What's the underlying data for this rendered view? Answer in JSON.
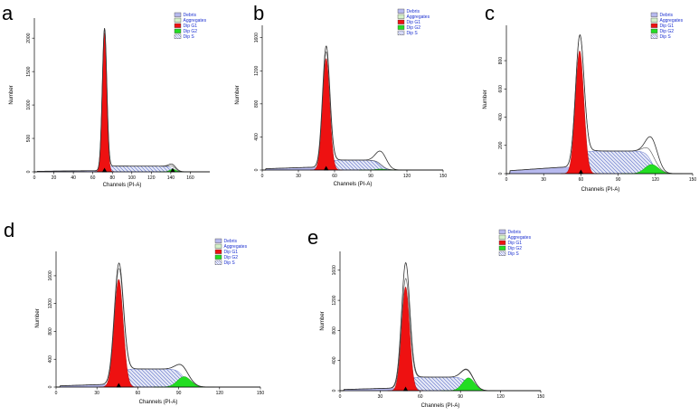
{
  "figure": {
    "legend_entries": [
      "Debris",
      "Aggregates",
      "Dip G1",
      "Dip G2",
      "Dip S"
    ]
  },
  "colors": {
    "debris": "#b7b9ee",
    "aggregates": "#d4f0c8",
    "g1": "#ee1111",
    "g2": "#22dd22",
    "s_hatch": "#5a6cc8",
    "outline": "#333333"
  },
  "chart_data": [
    {
      "panel": "a",
      "type": "histogram",
      "xlabel": "Channels (PI-A)",
      "ylabel": "Number",
      "xlim": [
        0,
        180
      ],
      "ylim": [
        0,
        2300
      ],
      "xticks": [
        0,
        20,
        40,
        60,
        80,
        100,
        120,
        140,
        160
      ],
      "xtick_labels": [
        "0",
        "20",
        "40",
        "60",
        "80",
        "100",
        "120",
        "140",
        "160"
      ],
      "yticks": [
        0,
        500,
        1000,
        1500,
        2000
      ],
      "ytick_labels": [
        "0",
        "500",
        "1000",
        "1500",
        "2000"
      ],
      "series": {
        "g1": {
          "mean": 72,
          "sd": 2.3,
          "height": 2080
        },
        "g2": {
          "mean": 142,
          "sd": 3.2,
          "height": 40
        },
        "s": {
          "start": 72,
          "end": 142,
          "level": 85
        },
        "debris": {
          "start": 0,
          "end": 70,
          "level": 20
        },
        "data_peaks": [
          [
            72,
            2150
          ],
          [
            142,
            110
          ]
        ],
        "markers": [
          72,
          142
        ]
      }
    },
    {
      "panel": "b",
      "type": "histogram",
      "xlabel": "Channels (PI-A)",
      "ylabel": "Number",
      "xlim": [
        0,
        150
      ],
      "ylim": [
        0,
        1750
      ],
      "xticks": [
        0,
        30,
        60,
        90,
        120,
        150
      ],
      "xtick_labels": [
        "0",
        "30",
        "60",
        "90",
        "120",
        "150"
      ],
      "yticks": [
        0,
        400,
        800,
        1200,
        1600
      ],
      "ytick_labels": [
        "0",
        "400",
        "800",
        "1200",
        "1600"
      ],
      "series": {
        "g1": {
          "mean": 53,
          "sd": 3.0,
          "height": 1350
        },
        "g2": {
          "mean": 98,
          "sd": 4.0,
          "height": 12
        },
        "s": {
          "start": 53,
          "end": 98,
          "level": 120
        },
        "debris": {
          "start": 0,
          "end": 53,
          "level": 40
        },
        "data_peaks": [
          [
            53,
            1500
          ],
          [
            99,
            220
          ]
        ],
        "markers": [
          53
        ]
      }
    },
    {
      "panel": "c",
      "type": "histogram",
      "xlabel": "Channels (PI-A)",
      "ylabel": "Number",
      "xlim": [
        0,
        150
      ],
      "ylim": [
        0,
        1050
      ],
      "xticks": [
        0,
        30,
        60,
        90,
        120,
        150
      ],
      "xtick_labels": [
        "0",
        "30",
        "60",
        "90",
        "120",
        "150"
      ],
      "yticks": [
        0,
        200,
        400,
        600,
        800
      ],
      "ytick_labels": [
        "0",
        "200",
        "400",
        "600",
        "800"
      ],
      "series": {
        "g1": {
          "mean": 59,
          "sd": 3.4,
          "height": 870
        },
        "g2": {
          "mean": 117,
          "sd": 5.5,
          "height": 65
        },
        "s": {
          "start": 59,
          "end": 117,
          "level": 160
        },
        "debris": {
          "start": 0,
          "end": 60,
          "level": 55
        },
        "data_peaks": [
          [
            60,
            990
          ],
          [
            118,
            240
          ]
        ],
        "markers": [
          60
        ]
      }
    },
    {
      "panel": "d",
      "type": "histogram",
      "xlabel": "Channels (PI-A)",
      "ylabel": "Number",
      "xlim": [
        0,
        150
      ],
      "ylim": [
        0,
        1950
      ],
      "xticks": [
        0,
        30,
        60,
        90,
        120,
        150
      ],
      "xtick_labels": [
        "0",
        "30",
        "60",
        "90",
        "120",
        "150"
      ],
      "yticks": [
        0,
        400,
        800,
        1200,
        1600
      ],
      "ytick_labels": [
        "0",
        "400",
        "800",
        "1200",
        "1600"
      ],
      "series": {
        "g1": {
          "mean": 46,
          "sd": 3.3,
          "height": 1550
        },
        "g2": {
          "mean": 94,
          "sd": 5.0,
          "height": 150
        },
        "s": {
          "start": 46,
          "end": 94,
          "level": 260
        },
        "debris": {
          "start": 0,
          "end": 46,
          "level": 45
        },
        "data_peaks": [
          [
            46,
            1780
          ],
          [
            92,
            310
          ]
        ],
        "markers": [
          46
        ]
      }
    },
    {
      "panel": "e",
      "type": "histogram",
      "xlabel": "Channels (PI-A)",
      "ylabel": "Number",
      "xlim": [
        0,
        150
      ],
      "ylim": [
        0,
        1850
      ],
      "xticks": [
        0,
        30,
        60,
        90,
        120,
        150
      ],
      "xtick_labels": [
        "0",
        "30",
        "60",
        "90",
        "120",
        "150"
      ],
      "yticks": [
        0,
        400,
        800,
        1200,
        1600
      ],
      "ytick_labels": [
        "0",
        "400",
        "800",
        "1200",
        "1600"
      ],
      "series": {
        "g1": {
          "mean": 49,
          "sd": 3.0,
          "height": 1380
        },
        "g2": {
          "mean": 96,
          "sd": 4.5,
          "height": 170
        },
        "s": {
          "start": 49,
          "end": 96,
          "level": 180
        },
        "debris": {
          "start": 0,
          "end": 49,
          "level": 40
        },
        "data_peaks": [
          [
            49,
            1700
          ],
          [
            96,
            270
          ]
        ],
        "markers": [
          49
        ]
      }
    }
  ]
}
